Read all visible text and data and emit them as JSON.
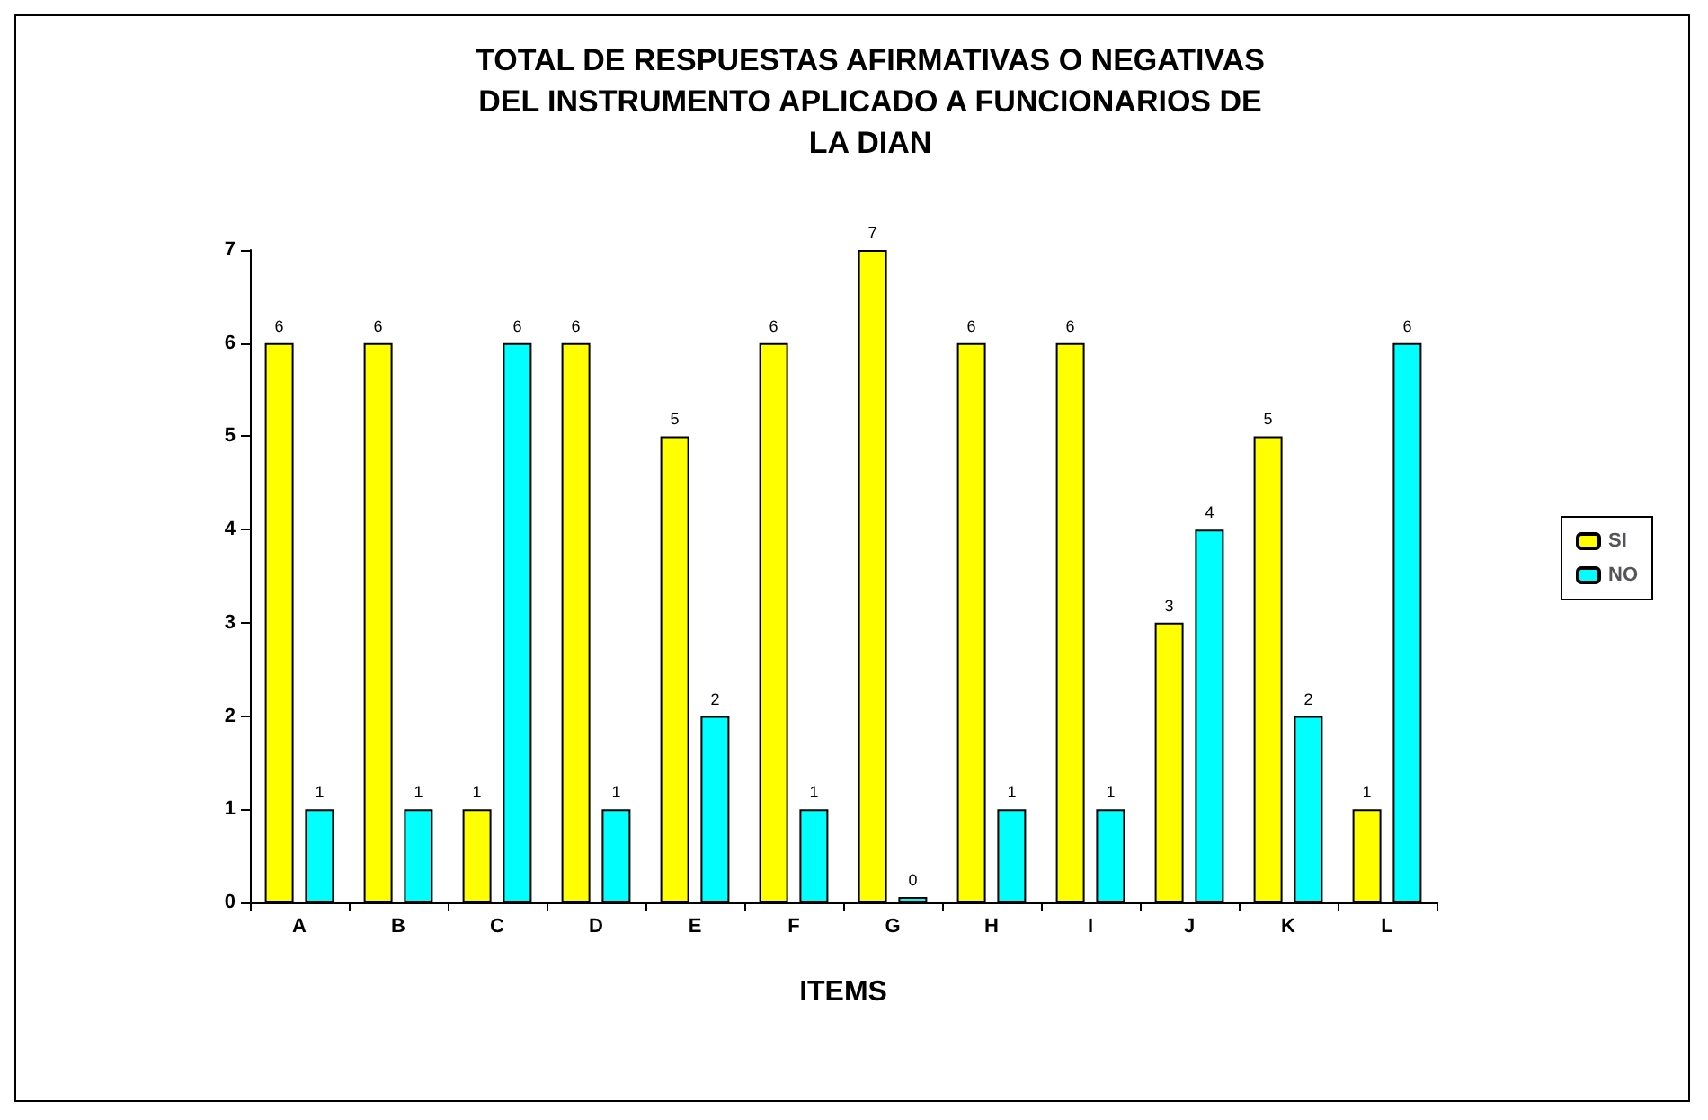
{
  "chart_data": {
    "type": "bar",
    "title": "TOTAL DE RESPUESTAS AFIRMATIVAS O NEGATIVAS\nDEL INSTRUMENTO APLICADO A FUNCIONARIOS DE\nLA DIAN",
    "xlabel": "ITEMS",
    "categories": [
      "A",
      "B",
      "C",
      "D",
      "E",
      "F",
      "G",
      "H",
      "I",
      "J",
      "K",
      "L"
    ],
    "series": [
      {
        "name": "SI",
        "color": "#ffff00",
        "values": [
          6,
          6,
          1,
          6,
          5,
          6,
          7,
          6,
          6,
          3,
          5,
          1
        ]
      },
      {
        "name": "NO",
        "color": "#00ffff",
        "values": [
          1,
          1,
          6,
          1,
          2,
          1,
          0,
          1,
          1,
          4,
          2,
          6
        ]
      }
    ],
    "ylim": [
      0,
      7
    ],
    "yticks": [
      0,
      1,
      2,
      3,
      4,
      5,
      6,
      7
    ],
    "grid": false,
    "legend": "right",
    "data_labels": true
  }
}
